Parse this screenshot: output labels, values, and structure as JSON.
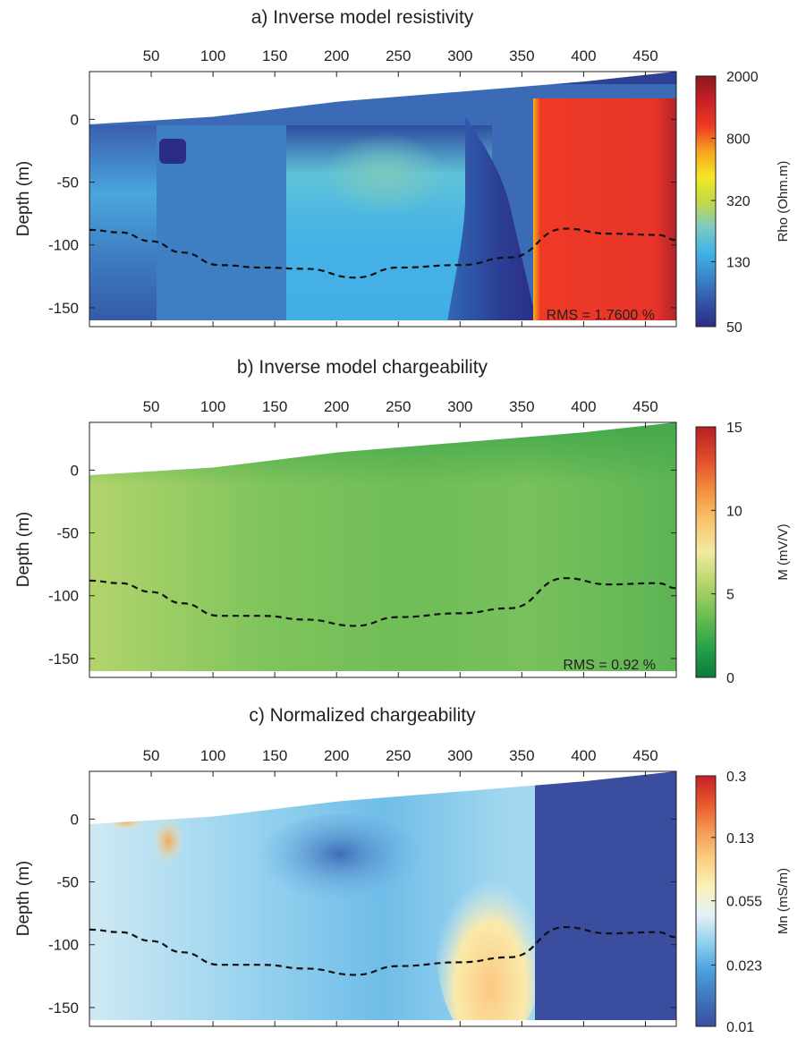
{
  "chart_data": [
    {
      "type": "heatmap",
      "title": "a) Inverse model resistivity",
      "ylabel": "Depth (m)",
      "xlabel": "",
      "xlim": [
        0,
        475
      ],
      "ylim": [
        -165,
        38
      ],
      "x_ticks": [
        "50",
        "100",
        "150",
        "200",
        "250",
        "300",
        "350",
        "400",
        "450"
      ],
      "y_ticks": [
        "0",
        "-50",
        "-100",
        "-150"
      ],
      "colorbar": {
        "label": "Rho (Ohm.m)",
        "scale": "log",
        "range": [
          50,
          2000
        ],
        "ticks": [
          "2000",
          "800",
          "320",
          "130",
          "50"
        ],
        "colors": [
          "#2b2c86",
          "#3456a6",
          "#3a88c9",
          "#42b4e6",
          "#7fcbbd",
          "#c4d946",
          "#f5e723",
          "#f7a31d",
          "#ee3a25",
          "#c92026",
          "#8b1a1c"
        ]
      },
      "annotation": "RMS = 1.7600 %",
      "surface": [
        [
          0,
          -4
        ],
        [
          100,
          2
        ],
        [
          200,
          14
        ],
        [
          300,
          22
        ],
        [
          400,
          30
        ],
        [
          475,
          38
        ]
      ],
      "dashed_line": [
        [
          0,
          -88
        ],
        [
          25,
          -90
        ],
        [
          50,
          -97
        ],
        [
          75,
          -106
        ],
        [
          105,
          -116
        ],
        [
          140,
          -118
        ],
        [
          175,
          -119
        ],
        [
          215,
          -126
        ],
        [
          250,
          -118
        ],
        [
          300,
          -116
        ],
        [
          340,
          -110
        ],
        [
          385,
          -87
        ],
        [
          420,
          -91
        ],
        [
          460,
          -92
        ],
        [
          475,
          -96
        ]
      ],
      "grid": false
    },
    {
      "type": "heatmap",
      "title": "b) Inverse model chargeability",
      "ylabel": "Depth (m)",
      "xlabel": "",
      "xlim": [
        0,
        475
      ],
      "ylim": [
        -165,
        38
      ],
      "x_ticks": [
        "50",
        "100",
        "150",
        "200",
        "250",
        "300",
        "350",
        "400",
        "450"
      ],
      "y_ticks": [
        "0",
        "-50",
        "-100",
        "-150"
      ],
      "colorbar": {
        "label": "M (mV/V)",
        "scale": "linear",
        "range": [
          0,
          15
        ],
        "ticks": [
          "15",
          "10",
          "5",
          "0"
        ],
        "colors": [
          "#0a7a3e",
          "#2aa34a",
          "#6fbe54",
          "#b5d56a",
          "#f2eba0",
          "#f8c46d",
          "#f28e3c",
          "#e04a2c",
          "#b51f24"
        ]
      },
      "annotation": "RMS = 0.92 %",
      "surface": [
        [
          0,
          -4
        ],
        [
          100,
          2
        ],
        [
          200,
          14
        ],
        [
          300,
          22
        ],
        [
          400,
          30
        ],
        [
          475,
          38
        ]
      ],
      "dashed_line": [
        [
          0,
          -88
        ],
        [
          25,
          -90
        ],
        [
          50,
          -97
        ],
        [
          75,
          -106
        ],
        [
          105,
          -116
        ],
        [
          140,
          -116
        ],
        [
          175,
          -119
        ],
        [
          215,
          -124
        ],
        [
          250,
          -117
        ],
        [
          300,
          -114
        ],
        [
          340,
          -110
        ],
        [
          385,
          -86
        ],
        [
          420,
          -91
        ],
        [
          460,
          -90
        ],
        [
          475,
          -94
        ]
      ],
      "grid": false
    },
    {
      "type": "heatmap",
      "title": "c) Normalized chargeability",
      "ylabel": "Depth (m)",
      "xlabel": "",
      "xlim": [
        0,
        475
      ],
      "ylim": [
        -165,
        38
      ],
      "x_ticks": [
        "50",
        "100",
        "150",
        "200",
        "250",
        "300",
        "350",
        "400",
        "450"
      ],
      "y_ticks": [
        "0",
        "-50",
        "-100",
        "-150"
      ],
      "colorbar": {
        "label": "Mn (mS/m)",
        "scale": "log",
        "range": [
          0.01,
          0.3
        ],
        "ticks": [
          "0.3",
          "0.13",
          "0.055",
          "0.023",
          "0.01"
        ],
        "colors": [
          "#3a4d9f",
          "#3f76bb",
          "#4aa1dc",
          "#8fd0ef",
          "#e3f2f5",
          "#faf2b8",
          "#fbcf80",
          "#f59a56",
          "#e8572e",
          "#c81f26"
        ]
      },
      "annotation": "",
      "surface": [
        [
          0,
          -4
        ],
        [
          100,
          2
        ],
        [
          200,
          14
        ],
        [
          300,
          22
        ],
        [
          400,
          30
        ],
        [
          475,
          38
        ]
      ],
      "dashed_line": [
        [
          0,
          -88
        ],
        [
          25,
          -90
        ],
        [
          50,
          -97
        ],
        [
          75,
          -106
        ],
        [
          105,
          -116
        ],
        [
          140,
          -116
        ],
        [
          175,
          -119
        ],
        [
          215,
          -124
        ],
        [
          250,
          -117
        ],
        [
          300,
          -114
        ],
        [
          340,
          -110
        ],
        [
          385,
          -86
        ],
        [
          420,
          -91
        ],
        [
          460,
          -90
        ],
        [
          475,
          -94
        ]
      ],
      "grid": false
    }
  ]
}
